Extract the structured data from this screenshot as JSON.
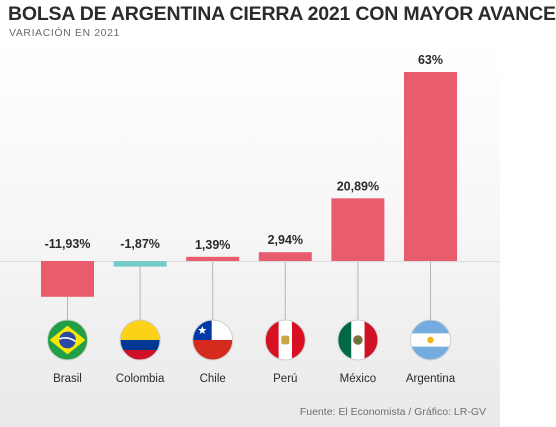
{
  "header": {
    "title": "BOLSA DE ARGENTINA CIERRA 2021 CON MAYOR AVANCE",
    "subtitle": "VARIACIÓN EN 2021"
  },
  "footer": {
    "source": "Fuente: El Economista / Gráfico: LR-GV"
  },
  "chart_data": {
    "type": "bar",
    "title": "BOLSA DE ARGENTINA CIERRA 2021 CON MAYOR AVANCE",
    "subtitle": "VARIACIÓN EN 2021",
    "categories": [
      "Brasil",
      "Colombia",
      "Chile",
      "Perú",
      "México",
      "Argentina"
    ],
    "values": [
      -11.93,
      -1.87,
      1.39,
      2.94,
      20.89,
      63
    ],
    "value_labels": [
      "-11,93%",
      "-1,87%",
      "1,39%",
      "2,94%",
      "20,89%",
      "63%"
    ],
    "flags": [
      "brazil-flag-icon",
      "colombia-flag-icon",
      "chile-flag-icon",
      "peru-flag-icon",
      "mexico-flag-icon",
      "argentina-flag-icon"
    ],
    "colors": {
      "bar": "#e95c6e",
      "bar_small_negative": "#74cbc9",
      "background_bottom": "#e9e9e9"
    },
    "ylim": [
      -14,
      63
    ],
    "grid": false
  }
}
